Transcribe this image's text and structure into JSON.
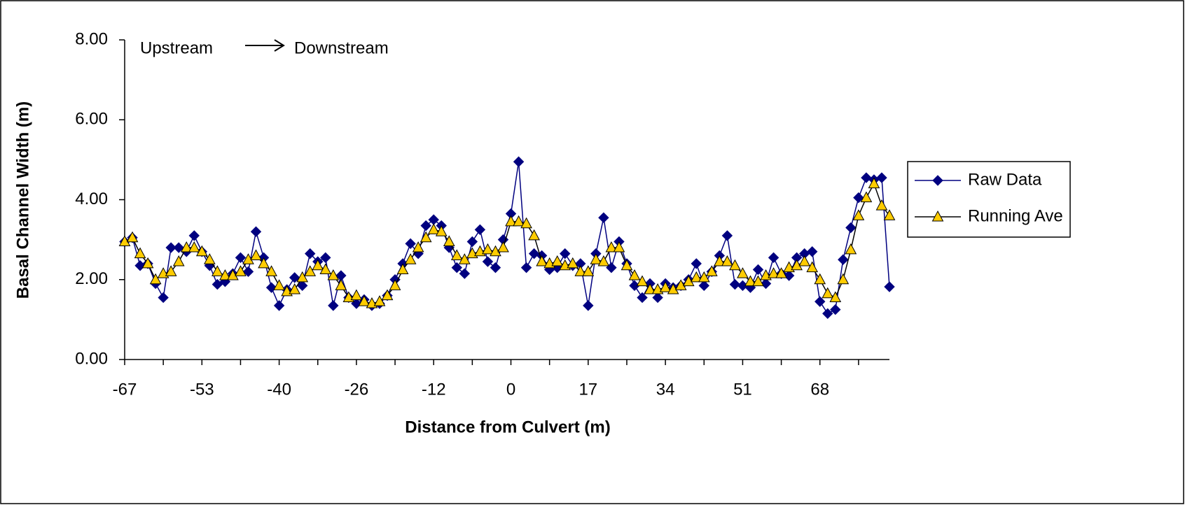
{
  "chart_data": {
    "type": "line",
    "annotations": [
      "Upstream",
      "Downstream"
    ],
    "x_label": "Distance from Culvert (m)",
    "y_label": "Basal Channel Width (m)",
    "categories": [
      "-67",
      null,
      null,
      null,
      null,
      null,
      null,
      null,
      null,
      null,
      "-53",
      null,
      null,
      null,
      null,
      null,
      null,
      null,
      null,
      null,
      "-40",
      null,
      null,
      null,
      null,
      null,
      null,
      null,
      null,
      null,
      "-26",
      null,
      null,
      null,
      null,
      null,
      null,
      null,
      null,
      null,
      "-12",
      null,
      null,
      null,
      null,
      null,
      null,
      null,
      null,
      null,
      "0",
      null,
      null,
      null,
      null,
      null,
      null,
      null,
      null,
      null,
      "17",
      null,
      null,
      null,
      null,
      null,
      null,
      null,
      null,
      null,
      "34",
      null,
      null,
      null,
      null,
      null,
      null,
      null,
      null,
      null,
      "51",
      null,
      null,
      null,
      null,
      null,
      null,
      null,
      null,
      null,
      "68",
      null,
      null,
      null,
      null,
      null,
      null,
      null,
      null,
      null
    ],
    "series": [
      {
        "name": "Raw Data",
        "color": "#000080",
        "marker": "diamond",
        "values": [
          2.95,
          3.05,
          2.35,
          2.4,
          1.9,
          1.55,
          2.8,
          2.8,
          2.7,
          3.1,
          2.7,
          2.35,
          1.88,
          1.95,
          2.15,
          2.55,
          2.2,
          3.2,
          2.55,
          1.8,
          1.35,
          1.75,
          2.05,
          1.85,
          2.65,
          2.45,
          2.55,
          1.35,
          2.1,
          1.55,
          1.4,
          1.5,
          1.35,
          1.4,
          1.6,
          2.0,
          2.4,
          2.9,
          2.65,
          3.35,
          3.5,
          3.35,
          2.8,
          2.3,
          2.15,
          2.95,
          3.25,
          2.45,
          2.3,
          3.0,
          3.65,
          4.95,
          2.3,
          2.65,
          2.6,
          2.25,
          2.3,
          2.65,
          2.35,
          2.4,
          1.35,
          2.65,
          3.55,
          2.3,
          2.95,
          2.4,
          1.85,
          1.55,
          1.9,
          1.55,
          1.9,
          1.8,
          1.85,
          2.0,
          2.4,
          1.85,
          2.2,
          2.6,
          3.1,
          1.88,
          1.85,
          1.8,
          2.25,
          1.9,
          2.55,
          2.15,
          2.1,
          2.55,
          2.65,
          2.7,
          1.45,
          1.15,
          1.25,
          2.5,
          3.3,
          4.05,
          4.55,
          4.5,
          4.55,
          1.82
        ]
      },
      {
        "name": "Running Ave",
        "color": "#000000",
        "marker_color": "#FFCC00",
        "marker": "triangle",
        "values": [
          2.95,
          3.05,
          2.65,
          2.4,
          2.0,
          2.15,
          2.2,
          2.45,
          2.8,
          2.8,
          2.7,
          2.5,
          2.2,
          2.1,
          2.1,
          2.2,
          2.5,
          2.6,
          2.4,
          2.2,
          1.85,
          1.7,
          1.75,
          2.05,
          2.2,
          2.35,
          2.25,
          2.1,
          1.85,
          1.55,
          1.6,
          1.45,
          1.4,
          1.45,
          1.6,
          1.85,
          2.25,
          2.5,
          2.8,
          3.05,
          3.25,
          3.2,
          2.95,
          2.6,
          2.5,
          2.65,
          2.7,
          2.75,
          2.7,
          2.8,
          3.45,
          3.45,
          3.4,
          3.1,
          2.45,
          2.4,
          2.45,
          2.35,
          2.4,
          2.2,
          2.2,
          2.5,
          2.45,
          2.8,
          2.8,
          2.35,
          2.1,
          1.95,
          1.75,
          1.75,
          1.8,
          1.75,
          1.85,
          1.95,
          2.05,
          2.05,
          2.2,
          2.45,
          2.45,
          2.35,
          2.15,
          1.95,
          1.95,
          2.1,
          2.15,
          2.15,
          2.3,
          2.35,
          2.45,
          2.3,
          2.0,
          1.65,
          1.55,
          2.0,
          2.75,
          3.6,
          4.05,
          4.4,
          3.85,
          3.6
        ]
      }
    ],
    "ylim": [
      0,
      8
    ],
    "yticks": [
      {
        "value": 0,
        "label": "0.00"
      },
      {
        "value": 2,
        "label": "2.00"
      },
      {
        "value": 4,
        "label": "4.00"
      },
      {
        "value": 6,
        "label": "6.00"
      },
      {
        "value": 8,
        "label": "8.00"
      }
    ],
    "grid": false,
    "legend": "right"
  }
}
